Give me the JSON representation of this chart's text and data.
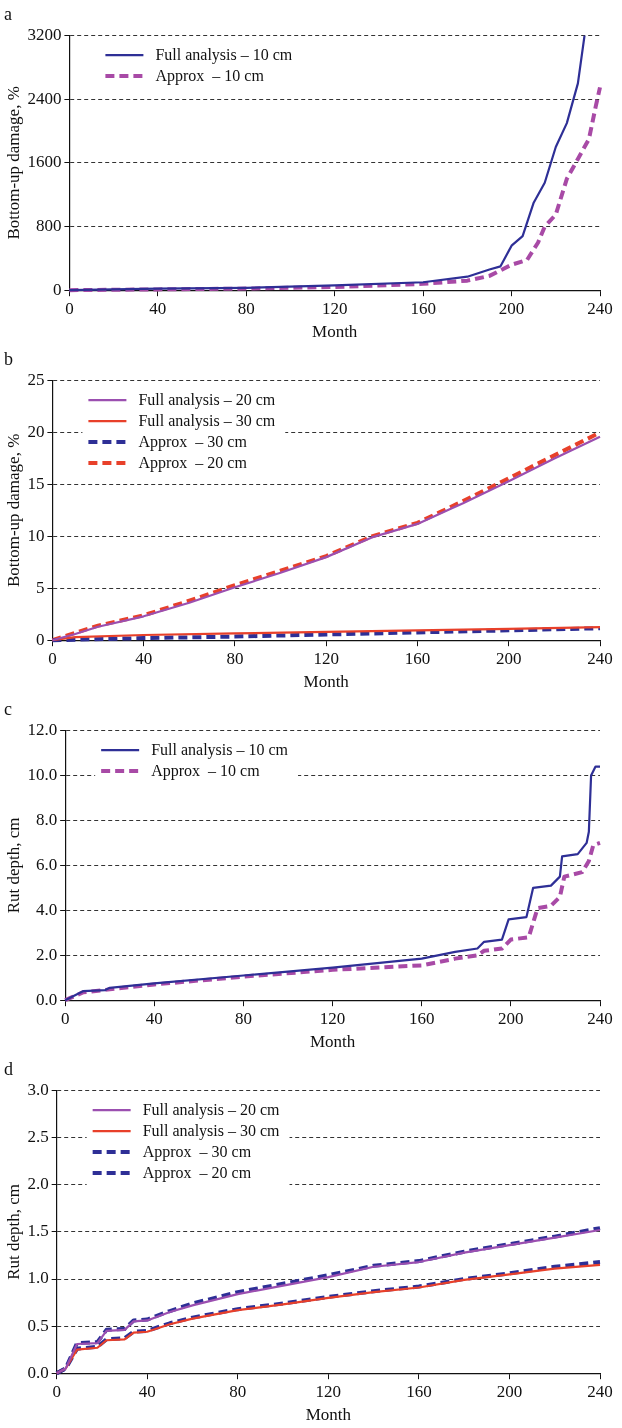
{
  "chart_data": [
    {
      "type": "line",
      "title": "a",
      "xlabel": "Month",
      "ylabel": "Bottom-up damage, %",
      "xlim": [
        0,
        240
      ],
      "xticks": [
        0,
        40,
        80,
        120,
        160,
        200,
        240
      ],
      "ylim": [
        0,
        3200
      ],
      "yticks": [
        0,
        800,
        1600,
        2400,
        3200
      ],
      "grid": "y",
      "legend": "top left",
      "marker": "none",
      "series": [
        {
          "name": "Full analysis – 10 cm",
          "color": "#2e2f96",
          "line_style": "solid",
          "x": [
            0,
            40,
            80,
            120,
            160,
            180,
            190,
            195,
            200,
            205,
            210,
            215,
            220,
            225,
            230,
            233
          ],
          "values": [
            0,
            20,
            30,
            60,
            100,
            170,
            260,
            300,
            560,
            680,
            1100,
            1350,
            1800,
            2100,
            2600,
            3200
          ]
        },
        {
          "name": "Approx  – 10 cm",
          "color": "#a84aa6",
          "line_style": "dashed",
          "x": [
            0,
            40,
            80,
            120,
            160,
            180,
            190,
            200,
            207,
            212,
            215,
            220,
            225,
            230,
            235,
            238,
            240
          ],
          "values": [
            0,
            10,
            20,
            40,
            80,
            120,
            180,
            320,
            380,
            600,
            800,
            950,
            1400,
            1650,
            1900,
            2300,
            2550
          ]
        }
      ]
    },
    {
      "type": "line",
      "title": "b",
      "xlabel": "Month",
      "ylabel": "Bottom-up damage, %",
      "xlim": [
        0,
        240
      ],
      "xticks": [
        0,
        40,
        80,
        120,
        160,
        200,
        240
      ],
      "ylim": [
        0,
        25
      ],
      "yticks": [
        0,
        5,
        10,
        15,
        20,
        25
      ],
      "grid": "y",
      "legend": "top left",
      "marker": "none",
      "series": [
        {
          "name": "Full analysis – 20 cm",
          "color": "#9b4fb0",
          "line_style": "solid",
          "x": [
            0,
            10,
            20,
            40,
            60,
            80,
            100,
            120,
            140,
            160,
            180,
            200,
            220,
            240
          ],
          "values": [
            0,
            0.6,
            1.3,
            2.3,
            3.6,
            5.1,
            6.5,
            8,
            9.9,
            11.2,
            13.2,
            15.3,
            17.5,
            19.6
          ]
        },
        {
          "name": "Full analysis – 30 cm",
          "color": "#e8402a",
          "line_style": "solid",
          "x": [
            0,
            10,
            40,
            80,
            120,
            160,
            200,
            240
          ],
          "values": [
            0,
            0.3,
            0.5,
            0.65,
            0.8,
            0.95,
            1.1,
            1.25
          ]
        },
        {
          "name": "Approx  – 30 cm",
          "color": "#2e2f96",
          "line_style": "dashed",
          "x": [
            0,
            40,
            80,
            120,
            160,
            200,
            240
          ],
          "values": [
            0,
            0.2,
            0.35,
            0.55,
            0.75,
            0.95,
            1.15
          ]
        },
        {
          "name": "Approx  – 20 cm",
          "color": "#e8402a",
          "line_style": "dashed",
          "x": [
            0,
            10,
            20,
            40,
            60,
            80,
            100,
            120,
            140,
            160,
            180,
            200,
            220,
            240
          ],
          "values": [
            0,
            0.7,
            1.4,
            2.4,
            3.8,
            5.3,
            6.7,
            8.1,
            10,
            11.3,
            13.4,
            15.6,
            17.8,
            20
          ]
        }
      ]
    },
    {
      "type": "line",
      "title": "c",
      "xlabel": "Month",
      "ylabel": "Rut depth, cm",
      "xlim": [
        0,
        240
      ],
      "xticks": [
        0,
        40,
        80,
        120,
        160,
        200,
        240
      ],
      "ylim": [
        0,
        12
      ],
      "yticks": [
        {
          "value": 0,
          "label": "0.0"
        },
        {
          "value": 2,
          "label": "2.0"
        },
        {
          "value": 4,
          "label": "4.0"
        },
        {
          "value": 6,
          "label": "6.0"
        },
        {
          "value": 8,
          "label": "8.0"
        },
        {
          "value": 10,
          "label": "10.0"
        },
        {
          "value": 12,
          "label": "12.0"
        }
      ],
      "grid": "y",
      "legend": "top left",
      "marker": "none",
      "series": [
        {
          "name": "Full analysis – 10 cm",
          "color": "#2e2f96",
          "line_style": "solid",
          "x": [
            0,
            8,
            18,
            20,
            40,
            80,
            120,
            160,
            175,
            185,
            188,
            196,
            199,
            207,
            210,
            218,
            222,
            223,
            230,
            234,
            235,
            236,
            238,
            240
          ],
          "values": [
            0,
            0.4,
            0.45,
            0.55,
            0.75,
            1.1,
            1.45,
            1.85,
            2.15,
            2.3,
            2.6,
            2.7,
            3.6,
            3.7,
            5.0,
            5.1,
            5.5,
            6.4,
            6.5,
            7.0,
            7.5,
            10.0,
            10.4,
            10.4
          ]
        },
        {
          "name": "Approx  – 10 cm",
          "color": "#a84aa6",
          "line_style": "dashed",
          "x": [
            0,
            8,
            40,
            80,
            120,
            160,
            175,
            185,
            188,
            196,
            200,
            208,
            212,
            218,
            222,
            224,
            232,
            235,
            237,
            240
          ],
          "values": [
            0,
            0.35,
            0.7,
            1.05,
            1.35,
            1.55,
            1.85,
            2.0,
            2.2,
            2.3,
            2.7,
            2.8,
            4.1,
            4.2,
            4.6,
            5.5,
            5.7,
            6.2,
            6.9,
            7.0
          ]
        }
      ]
    },
    {
      "type": "line",
      "title": "d",
      "xlabel": "Month",
      "ylabel": "Rut depth, cm",
      "xlim": [
        0,
        240
      ],
      "xticks": [
        0,
        40,
        80,
        120,
        160,
        200,
        240
      ],
      "ylim": [
        0,
        3
      ],
      "yticks": [
        {
          "value": 0,
          "label": "0.0"
        },
        {
          "value": 0.5,
          "label": "0.5"
        },
        {
          "value": 1,
          "label": "1.0"
        },
        {
          "value": 1.5,
          "label": "1.5"
        },
        {
          "value": 2,
          "label": "2.0"
        },
        {
          "value": 2.5,
          "label": "2.5"
        },
        {
          "value": 3,
          "label": "3.0"
        }
      ],
      "grid": "y",
      "legend": "top left",
      "marker": "none",
      "series": [
        {
          "name": "Full analysis – 20 cm",
          "color": "#9b4fb0",
          "line_style": "solid",
          "x": [
            0,
            4,
            9,
            18,
            22,
            30,
            34,
            40,
            50,
            60,
            80,
            100,
            120,
            140,
            160,
            180,
            200,
            220,
            240
          ],
          "values": [
            0,
            0.05,
            0.31,
            0.32,
            0.45,
            0.46,
            0.55,
            0.56,
            0.65,
            0.72,
            0.84,
            0.93,
            1.02,
            1.13,
            1.18,
            1.28,
            1.36,
            1.44,
            1.52
          ]
        },
        {
          "name": "Full analysis – 30 cm",
          "color": "#e8402a",
          "line_style": "solid",
          "x": [
            0,
            4,
            9,
            18,
            22,
            30,
            34,
            40,
            50,
            60,
            80,
            100,
            120,
            140,
            160,
            180,
            200,
            220,
            240
          ],
          "values": [
            0,
            0.05,
            0.25,
            0.27,
            0.35,
            0.36,
            0.43,
            0.44,
            0.52,
            0.58,
            0.67,
            0.73,
            0.8,
            0.86,
            0.91,
            0.99,
            1.05,
            1.11,
            1.15
          ]
        },
        {
          "name": "Approx  – 30 cm",
          "color": "#2e2f96",
          "line_style": "dashed",
          "x": [
            0,
            4,
            9,
            18,
            22,
            30,
            34,
            40,
            50,
            60,
            80,
            100,
            120,
            140,
            160,
            180,
            200,
            220,
            240
          ],
          "values": [
            0,
            0.05,
            0.26,
            0.28,
            0.36,
            0.37,
            0.44,
            0.45,
            0.53,
            0.59,
            0.68,
            0.74,
            0.81,
            0.87,
            0.92,
            1.0,
            1.06,
            1.13,
            1.18
          ]
        },
        {
          "name": "Approx  – 20 cm",
          "color": "#2e2f96",
          "line_style": "dashed",
          "x": [
            0,
            4,
            9,
            18,
            22,
            30,
            34,
            40,
            50,
            60,
            80,
            100,
            120,
            140,
            160,
            180,
            200,
            220,
            240
          ],
          "values": [
            0,
            0.05,
            0.32,
            0.33,
            0.46,
            0.47,
            0.56,
            0.57,
            0.66,
            0.74,
            0.86,
            0.95,
            1.04,
            1.14,
            1.19,
            1.29,
            1.37,
            1.45,
            1.54
          ]
        }
      ]
    }
  ]
}
